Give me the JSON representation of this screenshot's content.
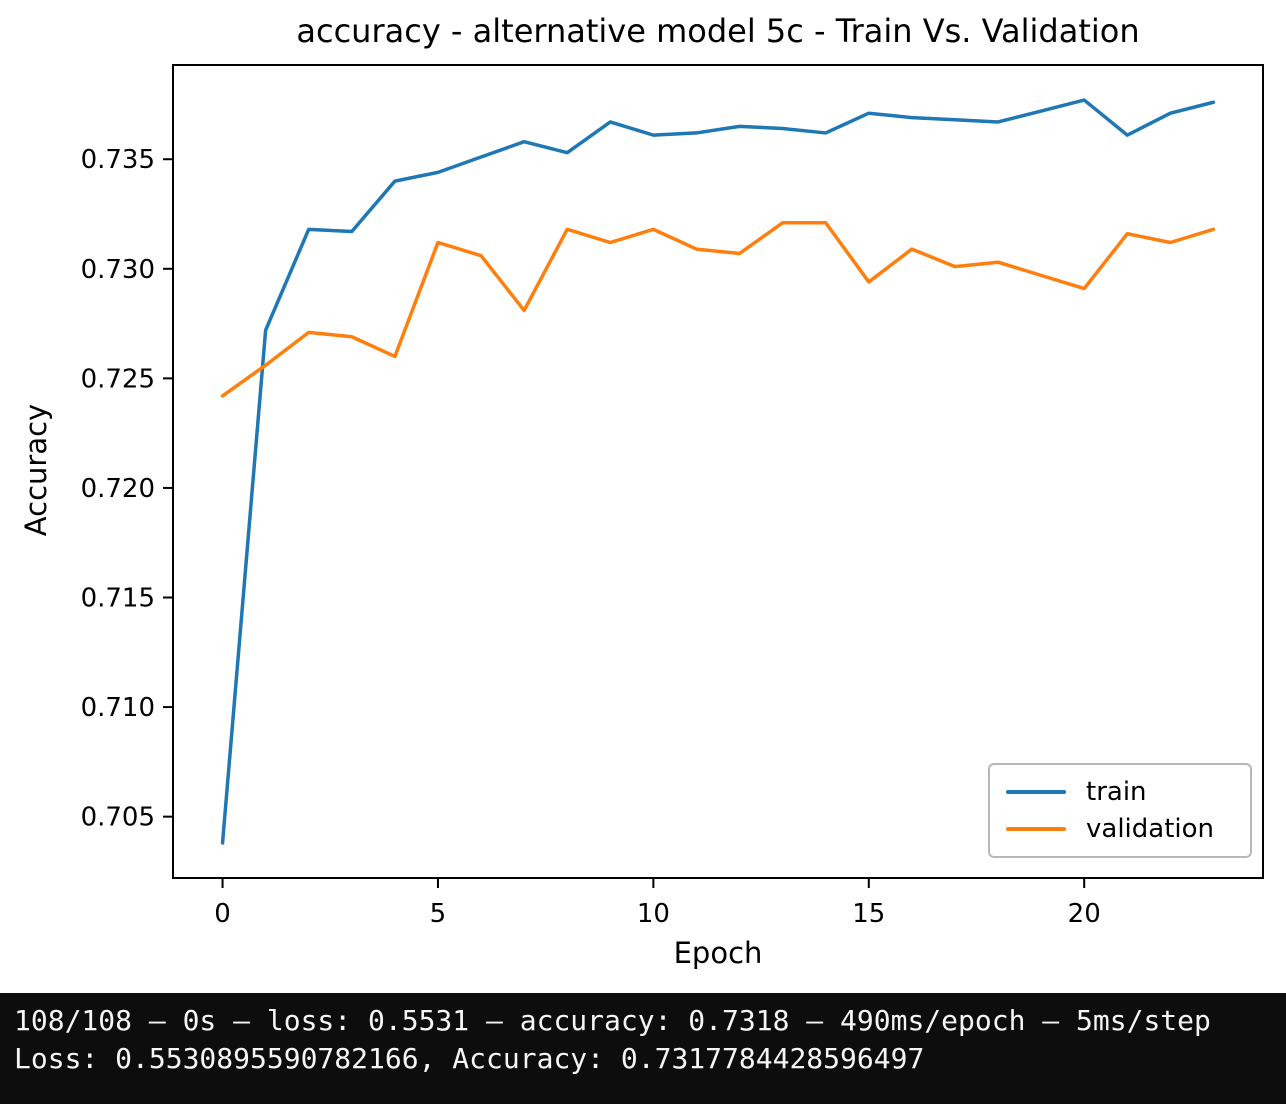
{
  "figure": {
    "title": "accuracy - alternative model 5c - Train Vs. Validation",
    "xlabel": "Epoch",
    "ylabel": "Accuracy"
  },
  "chart_data": {
    "type": "line",
    "title": "accuracy - alternative model 5c - Train Vs. Validation",
    "xlabel": "Epoch",
    "ylabel": "Accuracy",
    "grid": false,
    "x": [
      0,
      1,
      2,
      3,
      4,
      5,
      6,
      7,
      8,
      9,
      10,
      11,
      12,
      13,
      14,
      15,
      16,
      17,
      18,
      19,
      20,
      21,
      22,
      23
    ],
    "series": [
      {
        "name": "train",
        "color": "#1f77b4",
        "values": [
          0.7038,
          0.7272,
          0.7318,
          0.7317,
          0.734,
          0.7344,
          0.7351,
          0.7358,
          0.7353,
          0.7367,
          0.7361,
          0.7362,
          0.7365,
          0.7364,
          0.7362,
          0.7371,
          0.7369,
          0.7368,
          0.7367,
          0.7372,
          0.7377,
          0.7361,
          0.7371,
          0.7376
        ]
      },
      {
        "name": "validation",
        "color": "#ff7f0e",
        "values": [
          0.7242,
          0.7256,
          0.7271,
          0.7269,
          0.726,
          0.7312,
          0.7306,
          0.7281,
          0.7318,
          0.7312,
          0.7318,
          0.7309,
          0.7307,
          0.7321,
          0.7321,
          0.7294,
          0.7309,
          0.7301,
          0.7303,
          0.7297,
          0.7291,
          0.7316,
          0.7312,
          0.7318
        ]
      }
    ],
    "xticks": [
      0,
      5,
      10,
      15,
      20
    ],
    "yticks": [
      0.705,
      0.71,
      0.715,
      0.72,
      0.725,
      0.73,
      0.735
    ],
    "ytick_labels": [
      "0.705",
      "0.710",
      "0.715",
      "0.720",
      "0.725",
      "0.730",
      "0.735"
    ],
    "xlim": [
      -1.15,
      24.15
    ],
    "ylim": [
      0.7022,
      0.7393
    ],
    "legend": {
      "position": "lower right",
      "entries": [
        "train",
        "validation"
      ]
    }
  },
  "console": {
    "line1": "108/108 – 0s – loss: 0.5531 – accuracy: 0.7318 – 490ms/epoch – 5ms/step",
    "line2": "Loss: 0.5530895590782166, Accuracy: 0.7317784428596497"
  }
}
